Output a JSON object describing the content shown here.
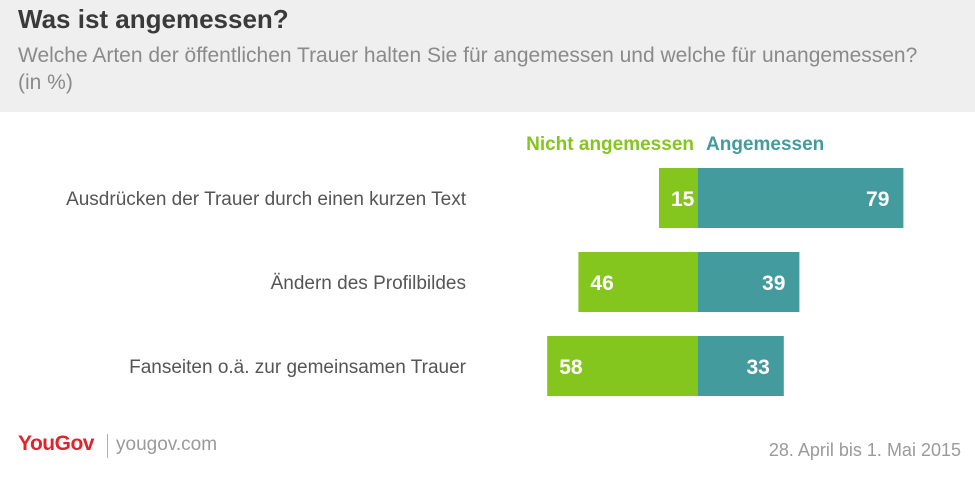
{
  "header": {
    "title": "Was ist angemessen?",
    "subtitle": "Welche Arten der öffentlichen Trauer halten Sie für angemessen und welche für unangemessen? (in %)"
  },
  "colors": {
    "nicht": "#84c51e",
    "angemessen": "#449b9e",
    "header_bg": "#efefef",
    "brand": "#e0242b"
  },
  "chart_data": {
    "type": "bar",
    "orientation": "horizontal-diverging",
    "categories": [
      "Ausdrücken der Trauer durch einen kurzen Text",
      "Ändern des Profilbildes",
      "Fanseiten o.ä. zur gemeinsamen Trauer"
    ],
    "series": [
      {
        "name": "Nicht angemessen",
        "values": [
          15,
          46,
          58
        ],
        "color": "#84c51e"
      },
      {
        "name": "Angemessen",
        "values": [
          79,
          39,
          33
        ],
        "color": "#449b9e"
      }
    ],
    "xlim": [
      -58,
      79
    ],
    "legend_position": "top-center",
    "grid": false
  },
  "footer": {
    "logo": "YouGov",
    "site": "yougov.com",
    "date": "28. April bis 1. Mai 2015"
  }
}
